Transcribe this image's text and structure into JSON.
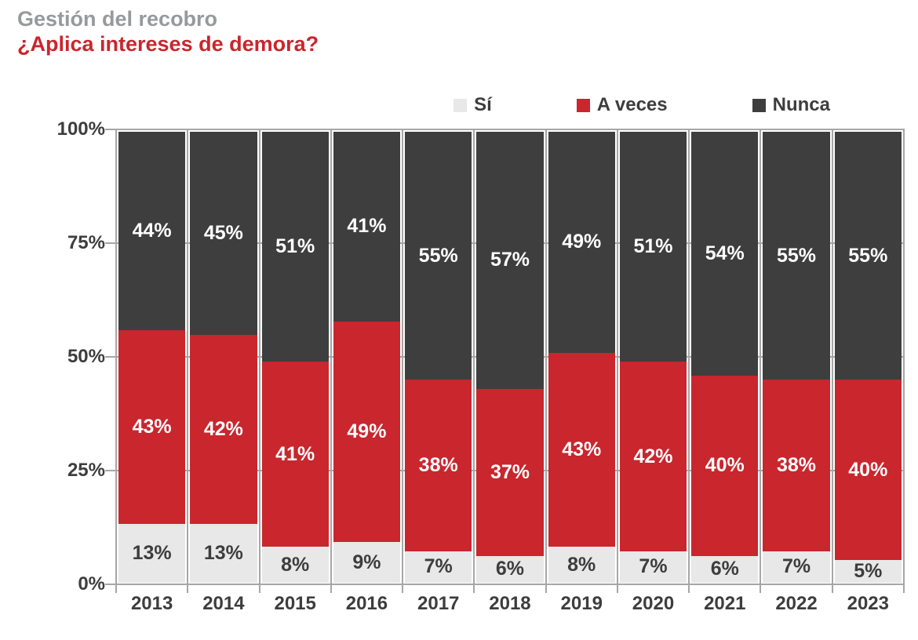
{
  "header": {
    "kicker": "Gestión del recobro",
    "title": "¿Aplica intereses de demora?"
  },
  "colors": {
    "si": "#e8e8e8",
    "a_veces": "#c9262e",
    "nunca": "#3f3e3e",
    "kicker_text": "#97999b",
    "title_text": "#c9262e",
    "axis_text": "#3d3d3d",
    "grid": "#a6a6a6",
    "label_on_dark": "#ffffff",
    "label_on_light": "#3d3d3d"
  },
  "chart_data": {
    "type": "bar",
    "stacked": true,
    "title": "Gestión del recobro — ¿Aplica intereses de demora?",
    "categories": [
      "2013",
      "2014",
      "2015",
      "2016",
      "2017",
      "2018",
      "2019",
      "2020",
      "2021",
      "2022",
      "2023"
    ],
    "series": [
      {
        "name": "Sí",
        "color_key": "si",
        "label_color": "#3d3d3d",
        "values": [
          13,
          13,
          8,
          9,
          7,
          6,
          8,
          7,
          6,
          7,
          5
        ]
      },
      {
        "name": "A veces",
        "color_key": "a_veces",
        "label_color": "#ffffff",
        "values": [
          43,
          42,
          41,
          49,
          38,
          37,
          43,
          42,
          40,
          38,
          40
        ]
      },
      {
        "name": "Nunca",
        "color_key": "nunca",
        "label_color": "#ffffff",
        "values": [
          44,
          45,
          51,
          41,
          55,
          57,
          49,
          51,
          54,
          55,
          55
        ]
      }
    ],
    "value_suffix": "%",
    "y_ticks": [
      "0%",
      "25%",
      "50%",
      "75%",
      "100%"
    ],
    "ylim": [
      0,
      100
    ],
    "grid": true,
    "legend_position": "top-right",
    "xlabel": "",
    "ylabel": ""
  }
}
